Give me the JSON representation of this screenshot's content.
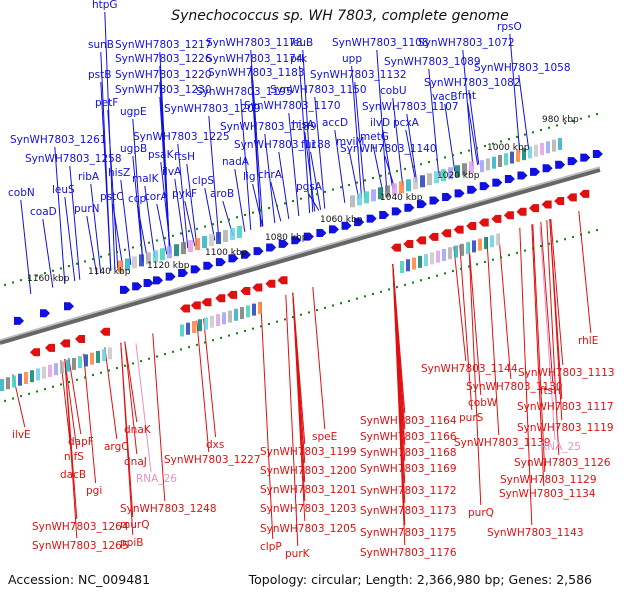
{
  "title": "Synechococcus sp. WH 7803, complete genome",
  "accession": "Accession: NC_009481",
  "summary": "Topology: circular; Length: 2,366,980 bp; Genes: 2,586",
  "colors": {
    "forward_gene": "#1010e0",
    "reverse_gene": "#e01010",
    "rna_label": "#e890c0",
    "tick": "#108010",
    "backbone": "#888888"
  },
  "scale_labels": [
    "980 kbp",
    "1000 kbp",
    "1020 kbp",
    "1040 kbp",
    "1060 kbp",
    "1080 kbp",
    "1100 kbp",
    "1120 kbp",
    "1140 kbp",
    "1160 kbp"
  ],
  "top_labels": [
    "htpG",
    "sunB",
    "pstB",
    "petF",
    "SynWH7803_1261",
    "SynWH7803_1258",
    "cobN",
    "coaD",
    "SynWH7803_1217",
    "SynWH7803_1226",
    "SynWH7803_1220",
    "SynWH7803_1230",
    "ugpE",
    "ugpB",
    "hisZ",
    "leuS",
    "ribA",
    "purN",
    "pstC",
    "ccp",
    "malK",
    "SynWH7803_1225",
    "psaK",
    "ilvA",
    "ftsH",
    "pykF",
    "corA",
    "clpS",
    "SynWH7803_1178",
    "SynWH7803_1174",
    "SynWH7803_1183",
    "SynWH7803_1195",
    "SynWH7803_1209",
    "SynWH7803_1189",
    "SynWH7803_1188",
    "nadA",
    "lig",
    "chrA",
    "aroB",
    "leuB",
    "prk",
    "SynWH7803_1170",
    "SynWH7803_1150",
    "hisA",
    "fur",
    "pgsA",
    "accD",
    "upp",
    "SynWH7803_1108",
    "SynWH7803_1132",
    "mviM",
    "SynWH7803_1140",
    "cobU",
    "ilvD",
    "pcxA",
    "metG",
    "SynWH7803_1107",
    "SynWH7803_1072",
    "SynWH7803_1089",
    "SynWH7803_1082",
    "vacB",
    "fmt",
    "SynWH7803_1058",
    "rpsO"
  ],
  "bottom_labels": [
    "ilvE",
    "dapF",
    "nifS",
    "dacB",
    "pgi",
    "argC",
    "dnaK",
    "dnaJ",
    "SynWH7803_1248",
    "murQ",
    "ppiB",
    "SynWH7803_1264",
    "SynWH7803_1265",
    "dxs",
    "SynWH7803_1227",
    "SynWH7803_1199",
    "SynWH7803_1200",
    "SynWH7803_1201",
    "SynWH7803_1203",
    "SynWH7803_1205",
    "clpP",
    "purK",
    "speE",
    "SynWH7803_1164",
    "SynWH7803_1166",
    "SynWH7803_1168",
    "SynWH7803_1169",
    "SynWH7803_1172",
    "SynWH7803_1173",
    "SynWH7803_1175",
    "SynWH7803_1176",
    "SynWH7803_1144",
    "SynWH7803_1130",
    "cobW",
    "purS",
    "SynWH7803_1139",
    "SynWH7803_1126",
    "SynWH7803_1129",
    "SynWH7803_1134",
    "purQ",
    "SynWH7803_1143",
    "SynWH7803_1113",
    "ftsH",
    "SynWH7803_1117",
    "SynWH7803_1119",
    "rhlE"
  ],
  "rna_labels": [
    "RNA_26",
    "RNA_25"
  ]
}
